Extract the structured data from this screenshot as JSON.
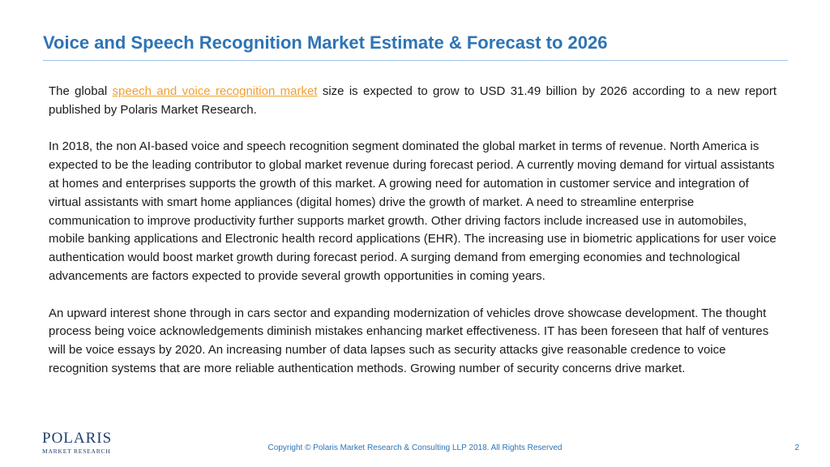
{
  "slide": {
    "title": "Voice and Speech Recognition Market Estimate & Forecast to 2026",
    "paragraph1": {
      "before_link": "The global ",
      "link_text": "speech and voice recognition market",
      "after_link": " size is expected to grow to USD 31.49 billion by 2026 according to a new report published by Polaris Market Research."
    },
    "paragraph2": "In 2018, the non AI-based voice and speech recognition segment dominated the global market in terms of revenue. North America is expected to be the leading contributor to global market revenue during forecast period. A currently moving demand for virtual assistants at homes and enterprises supports the growth of this market. A growing need for automation in customer service and integration of virtual assistants with smart home appliances (digital homes) drive the growth of market. A need to streamline enterprise communication to improve productivity further supports market growth. Other driving factors include increased use in automobiles, mobile banking applications and Electronic health record applications (EHR). The increasing use in biometric applications for user voice authentication would boost market growth during forecast period. A surging demand from emerging economies and technological advancements are factors expected to provide several growth opportunities in coming years.",
    "paragraph3": "An upward interest shone through in cars sector and expanding modernization of vehicles drove showcase development. The thought process being voice acknowledgements diminish mistakes enhancing market effectiveness. IT has been foreseen that half of ventures will be voice essays by 2020.  An increasing number of data lapses such as security attacks give reasonable credence to voice recognition systems that are more reliable authentication methods. Growing number of security concerns drive market."
  },
  "logo": {
    "name": "POLARIS",
    "tagline": "MARKET RESEARCH"
  },
  "footer": {
    "copyright": "Copyright © Polaris Market Research & Consulting LLP 2018. All Rights Reserved",
    "page_number": "2"
  },
  "colors": {
    "title": "#2e74b5",
    "link": "#f0a030",
    "logo": "#1f3f6e"
  }
}
